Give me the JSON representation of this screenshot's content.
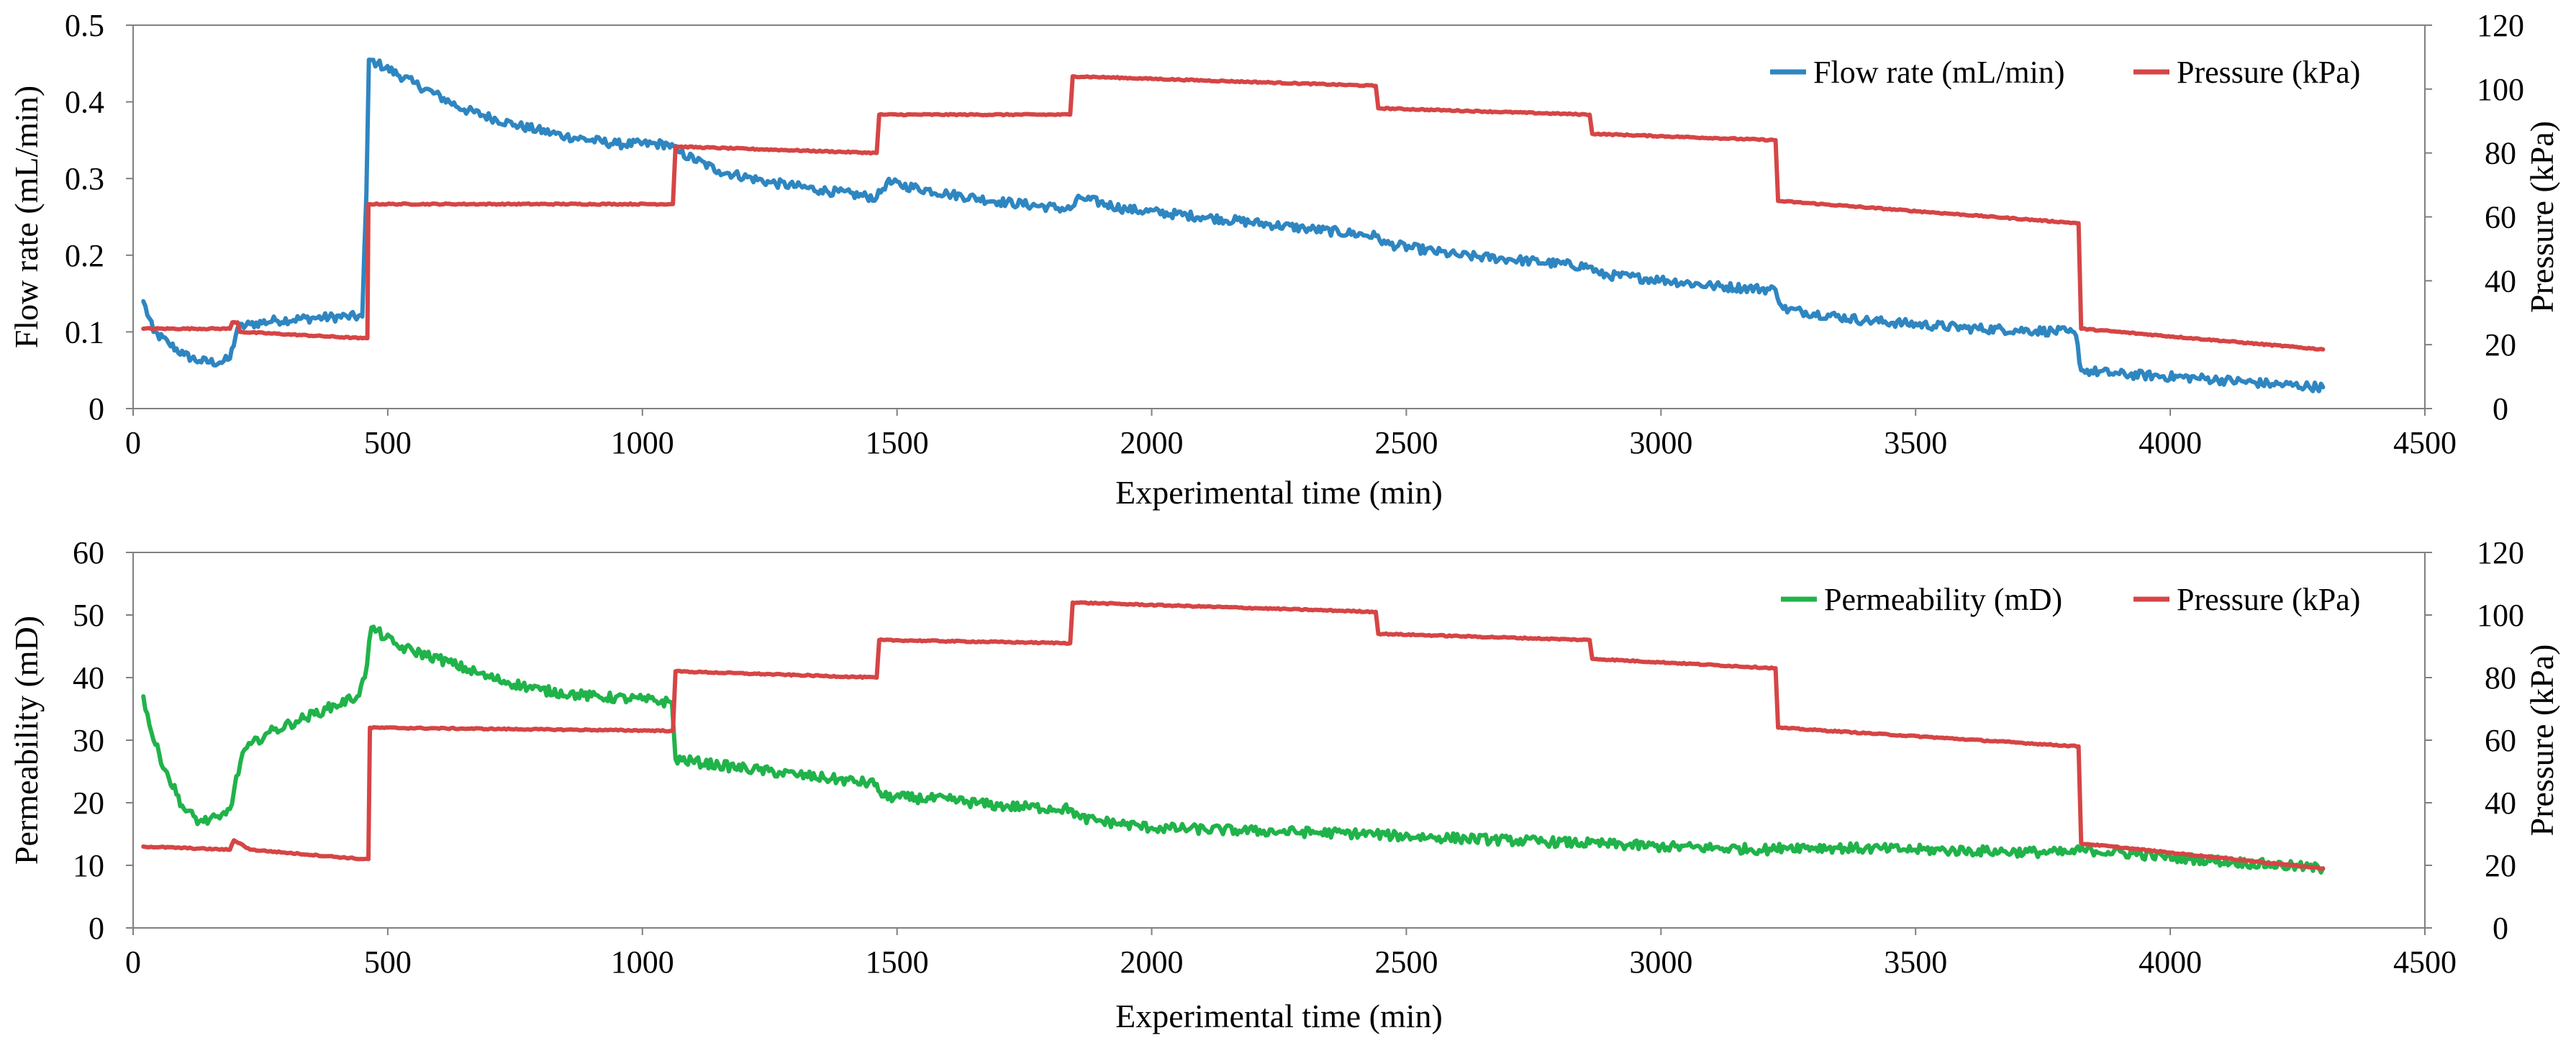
{
  "colors": {
    "flow": "#2e86c1",
    "pressure": "#d64545",
    "permeability": "#20b34a"
  },
  "chart_data": [
    {
      "type": "line",
      "xlabel": "Experimental time (min)",
      "ylabel": "Flow rate (mL/min)",
      "y2label": "Pressure (kPa)",
      "xlim": [
        0,
        4500
      ],
      "ylim": [
        0,
        0.5
      ],
      "y2lim": [
        0,
        120
      ],
      "x_ticks": [
        "0",
        "500",
        "1000",
        "1500",
        "2000",
        "2500",
        "3000",
        "3500",
        "4000",
        "4500"
      ],
      "y_ticks": [
        "0",
        "0.1",
        "0.2",
        "0.3",
        "0.4",
        "0.5"
      ],
      "y2_ticks": [
        "0",
        "20",
        "40",
        "60",
        "80",
        "100",
        "120"
      ],
      "legend_position": "top-right",
      "series": [
        {
          "name": "Flow rate (mL/min)",
          "axis": "left",
          "color": "#2e86c1",
          "noise": 0.006,
          "points": [
            [
              20,
              0.14
            ],
            [
              40,
              0.1
            ],
            [
              70,
              0.085
            ],
            [
              100,
              0.07
            ],
            [
              130,
              0.062
            ],
            [
              170,
              0.06
            ],
            [
              190,
              0.065
            ],
            [
              205,
              0.105
            ],
            [
              230,
              0.11
            ],
            [
              280,
              0.115
            ],
            [
              350,
              0.118
            ],
            [
              420,
              0.12
            ],
            [
              450,
              0.12
            ],
            [
              458,
              0.28
            ],
            [
              463,
              0.455
            ],
            [
              480,
              0.45
            ],
            [
              550,
              0.425
            ],
            [
              650,
              0.39
            ],
            [
              750,
              0.37
            ],
            [
              850,
              0.355
            ],
            [
              950,
              0.345
            ],
            [
              1050,
              0.345
            ],
            [
              1070,
              0.335
            ],
            [
              1150,
              0.31
            ],
            [
              1250,
              0.295
            ],
            [
              1350,
              0.285
            ],
            [
              1460,
              0.275
            ],
            [
              1480,
              0.295
            ],
            [
              1600,
              0.28
            ],
            [
              1700,
              0.27
            ],
            [
              1840,
              0.26
            ],
            [
              1860,
              0.275
            ],
            [
              1950,
              0.26
            ],
            [
              2100,
              0.25
            ],
            [
              2300,
              0.235
            ],
            [
              2440,
              0.225
            ],
            [
              2460,
              0.215
            ],
            [
              2600,
              0.2
            ],
            [
              2700,
              0.195
            ],
            [
              2860,
              0.185
            ],
            [
              2880,
              0.175
            ],
            [
              3000,
              0.168
            ],
            [
              3100,
              0.16
            ],
            [
              3225,
              0.155
            ],
            [
              3240,
              0.13
            ],
            [
              3400,
              0.115
            ],
            [
              3600,
              0.105
            ],
            [
              3800,
              0.1
            ],
            [
              3815,
              0.095
            ],
            [
              3825,
              0.05
            ],
            [
              3900,
              0.045
            ],
            [
              4050,
              0.04
            ],
            [
              4200,
              0.032
            ],
            [
              4300,
              0.028
            ]
          ]
        },
        {
          "name": "Pressure (kPa)",
          "axis": "right",
          "color": "#d64545",
          "noise": 0.2,
          "points": [
            [
              20,
              25
            ],
            [
              190,
              25
            ],
            [
              195,
              27
            ],
            [
              205,
              27
            ],
            [
              210,
              24
            ],
            [
              450,
              22
            ],
            [
              460,
              22
            ],
            [
              462,
              64
            ],
            [
              1060,
              64
            ],
            [
              1065,
              82
            ],
            [
              1460,
              80
            ],
            [
              1465,
              92
            ],
            [
              1840,
              92
            ],
            [
              1845,
              104
            ],
            [
              2440,
              101
            ],
            [
              2445,
              94
            ],
            [
              2860,
              92
            ],
            [
              2865,
              86
            ],
            [
              3225,
              84
            ],
            [
              3230,
              65
            ],
            [
              3820,
              58
            ],
            [
              3825,
              25
            ],
            [
              4300,
              18.5
            ]
          ]
        }
      ]
    },
    {
      "type": "line",
      "xlabel": "Experimental time (min)",
      "ylabel": "Permeability (mD)",
      "y2label": "Pressure (kPa)",
      "xlim": [
        0,
        4500
      ],
      "ylim": [
        0,
        60
      ],
      "y2lim": [
        0,
        120
      ],
      "x_ticks": [
        "0",
        "500",
        "1000",
        "1500",
        "2000",
        "2500",
        "3000",
        "3500",
        "4000",
        "4500"
      ],
      "y_ticks": [
        "0",
        "10",
        "20",
        "30",
        "40",
        "50",
        "60"
      ],
      "y2_ticks": [
        "0",
        "20",
        "40",
        "60",
        "80",
        "100",
        "120"
      ],
      "legend_position": "top-right",
      "series": [
        {
          "name": "Permeability (mD)",
          "axis": "left",
          "color": "#20b34a",
          "noise": 0.8,
          "points": [
            [
              20,
              37
            ],
            [
              40,
              30
            ],
            [
              70,
              24
            ],
            [
              100,
              19
            ],
            [
              130,
              17
            ],
            [
              170,
              17.5
            ],
            [
              190,
              19
            ],
            [
              215,
              28
            ],
            [
              260,
              31
            ],
            [
              320,
              33
            ],
            [
              380,
              35
            ],
            [
              440,
              37
            ],
            [
              455,
              40
            ],
            [
              468,
              48
            ],
            [
              520,
              45
            ],
            [
              600,
              43
            ],
            [
              700,
              40
            ],
            [
              800,
              38
            ],
            [
              900,
              37
            ],
            [
              1000,
              36.5
            ],
            [
              1058,
              36
            ],
            [
              1065,
              27
            ],
            [
              1150,
              26
            ],
            [
              1300,
              24.5
            ],
            [
              1460,
              23
            ],
            [
              1470,
              21
            ],
            [
              1600,
              20.5
            ],
            [
              1700,
              19.5
            ],
            [
              1840,
              19
            ],
            [
              1860,
              17.5
            ],
            [
              2000,
              16
            ],
            [
              2200,
              15.5
            ],
            [
              2440,
              15
            ],
            [
              2460,
              14.8
            ],
            [
              2700,
              14
            ],
            [
              2860,
              13.5
            ],
            [
              3000,
              13
            ],
            [
              3225,
              12.5
            ],
            [
              3240,
              13
            ],
            [
              3500,
              12.5
            ],
            [
              3800,
              12
            ],
            [
              3830,
              12.5
            ],
            [
              4050,
              11
            ],
            [
              4300,
              9.5
            ]
          ]
        },
        {
          "name": "Pressure (kPa)",
          "axis": "right",
          "color": "#d64545",
          "noise": 0.2,
          "points": [
            [
              20,
              26
            ],
            [
              190,
              25
            ],
            [
              198,
              28
            ],
            [
              210,
              27
            ],
            [
              230,
              25
            ],
            [
              450,
              22
            ],
            [
              462,
              22
            ],
            [
              465,
              64
            ],
            [
              1060,
              63
            ],
            [
              1065,
              82
            ],
            [
              1460,
              80
            ],
            [
              1465,
              92
            ],
            [
              1840,
              91
            ],
            [
              1845,
              104
            ],
            [
              2440,
              101
            ],
            [
              2445,
              94
            ],
            [
              2860,
              92
            ],
            [
              2865,
              86
            ],
            [
              3225,
              83
            ],
            [
              3230,
              64
            ],
            [
              3820,
              58
            ],
            [
              3825,
              27
            ],
            [
              4300,
              19
            ]
          ]
        }
      ]
    }
  ]
}
